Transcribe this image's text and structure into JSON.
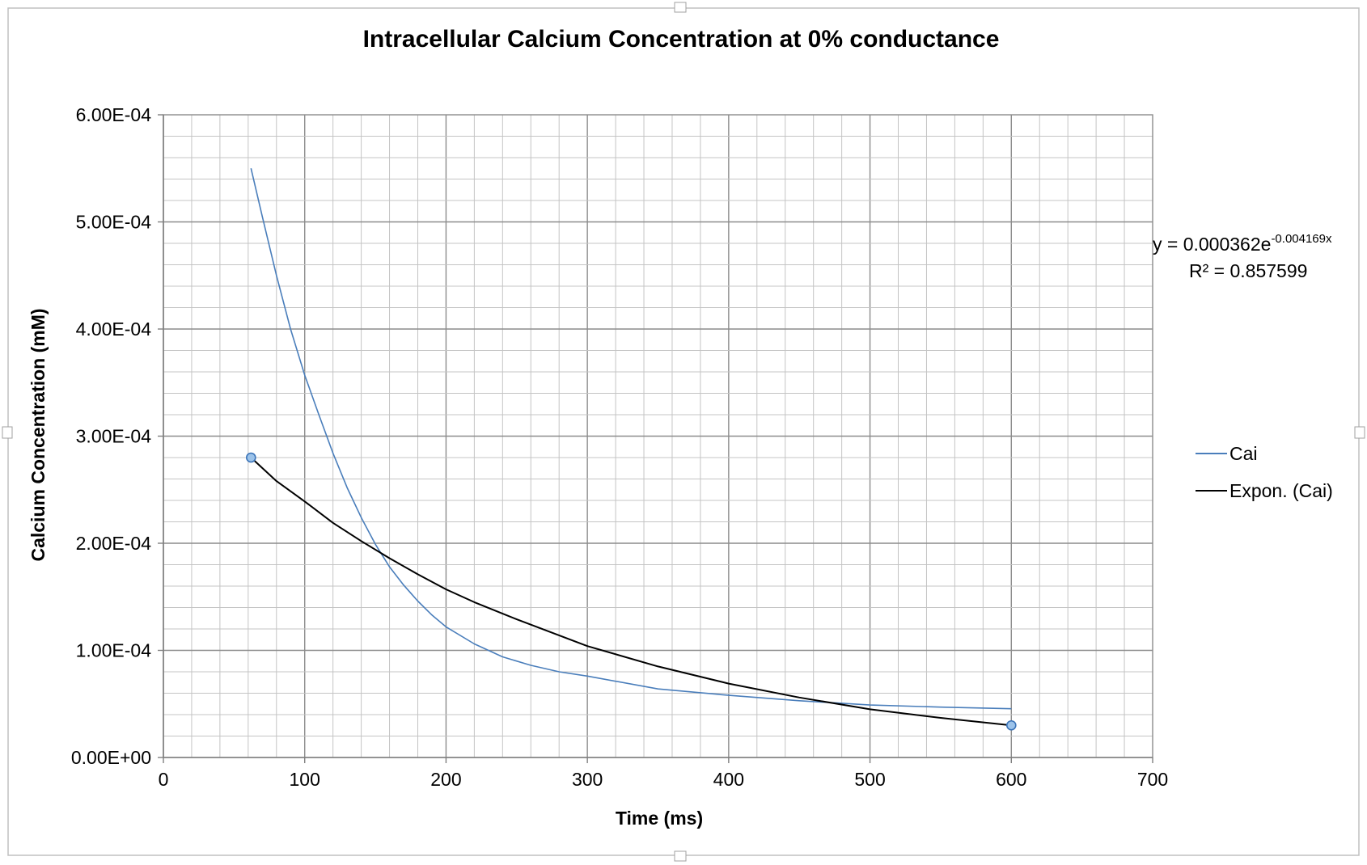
{
  "chart_data": {
    "type": "line",
    "title": "Intracellular Calcium Concentration at 0% conductance",
    "xlabel": "Time (ms)",
    "ylabel": "Calcium Concentration (mM)",
    "xlim": [
      0,
      700
    ],
    "ylim": [
      0,
      0.0006
    ],
    "x_ticks": [
      0,
      100,
      200,
      300,
      400,
      500,
      600,
      700
    ],
    "x_tick_labels": [
      "0",
      "100",
      "200",
      "300",
      "400",
      "500",
      "600",
      "700"
    ],
    "y_ticks": [
      0,
      0.0001,
      0.0002,
      0.0003,
      0.0004,
      0.0005,
      0.0006
    ],
    "y_tick_labels": [
      "0.00E+00",
      "1.00E-04",
      "2.00E-04",
      "3.00E-04",
      "4.00E-04",
      "5.00E-04",
      "6.00E-04"
    ],
    "major_grid": true,
    "minor_grid": true,
    "legend_position": "right",
    "series": [
      {
        "name": "Cai",
        "color": "#4a7ebb",
        "x": [
          62,
          70,
          80,
          90,
          100,
          110,
          120,
          130,
          140,
          150,
          160,
          170,
          180,
          190,
          200,
          220,
          240,
          260,
          280,
          300,
          350,
          400,
          450,
          500,
          550,
          600
        ],
        "y": [
          0.00055,
          0.000505,
          0.00045,
          0.0004,
          0.000357,
          0.00032,
          0.000284,
          0.000252,
          0.000224,
          0.000199,
          0.000178,
          0.000161,
          0.000146,
          0.000133,
          0.000122,
          0.000106,
          9.4e-05,
          8.6e-05,
          8e-05,
          7.6e-05,
          6.4e-05,
          5.8e-05,
          5.3e-05,
          4.9e-05,
          4.7e-05,
          4.55e-05
        ]
      },
      {
        "name": "Expon. (Cai)",
        "color": "#000000",
        "x": [
          62,
          80,
          100,
          120,
          140,
          160,
          180,
          200,
          220,
          250,
          300,
          350,
          400,
          450,
          500,
          550,
          600
        ],
        "y": [
          0.00028,
          0.000258,
          0.000239,
          0.000219,
          0.000202,
          0.000186,
          0.000171,
          0.000157,
          0.000145,
          0.000129,
          0.000104,
          8.5e-05,
          6.9e-05,
          5.6e-05,
          4.5e-05,
          3.7e-05,
          3e-05
        ]
      }
    ],
    "trendline_markers": [
      {
        "x": 62,
        "y": 0.00028
      },
      {
        "x": 600,
        "y": 3e-05
      }
    ],
    "trendline_equation": {
      "base": "y = 0.000362e",
      "exponent": "-0.004169x",
      "r_squared": "R² = 0.857599"
    }
  }
}
